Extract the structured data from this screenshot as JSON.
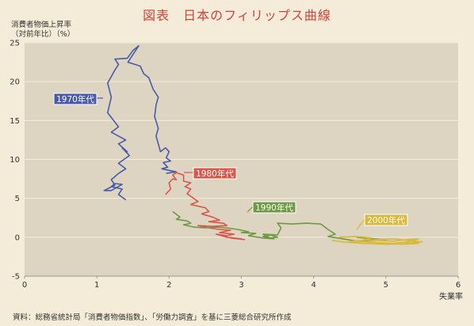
{
  "title": "図表　日本のフィリップス曲線",
  "source": "資料：総務省統計局「消費者物価指数」、「労働力調査」を基に三菱総合研究所作成",
  "chart_data": {
    "type": "line",
    "title": "図表　日本のフィリップス曲線",
    "ylabel_lines": [
      "消費者物価上昇率",
      "（対前年比）（%）"
    ],
    "xlabel": "失業率",
    "xlim": [
      0,
      6
    ],
    "ylim": [
      -5,
      25
    ],
    "xticks": [
      0,
      1,
      2,
      3,
      4,
      5,
      6
    ],
    "yticks": [
      -5,
      0,
      5,
      10,
      15,
      20,
      25
    ],
    "grid": "horizontal",
    "series": [
      {
        "name": "1970年代",
        "color": "#4a5aa8",
        "points": [
          [
            1.4,
            4.8
          ],
          [
            1.3,
            5.5
          ],
          [
            1.35,
            6.2
          ],
          [
            1.2,
            6.5
          ],
          [
            1.25,
            6.9
          ],
          [
            1.35,
            6.8
          ],
          [
            1.2,
            6.0
          ],
          [
            1.1,
            6.0
          ],
          [
            1.25,
            6.7
          ],
          [
            1.2,
            7.4
          ],
          [
            1.3,
            8.2
          ],
          [
            1.4,
            8.8
          ],
          [
            1.3,
            9.5
          ],
          [
            1.45,
            10.5
          ],
          [
            1.35,
            11.5
          ],
          [
            1.42,
            11.0
          ],
          [
            1.3,
            12.0
          ],
          [
            1.4,
            12.5
          ],
          [
            1.2,
            13.5
          ],
          [
            1.3,
            14.2
          ],
          [
            1.15,
            16.0
          ],
          [
            1.2,
            18.0
          ],
          [
            1.15,
            19.8
          ],
          [
            1.25,
            21.5
          ],
          [
            1.3,
            22.2
          ],
          [
            1.25,
            22.9
          ],
          [
            1.42,
            23.0
          ],
          [
            1.5,
            24.0
          ],
          [
            1.58,
            24.6
          ],
          [
            1.43,
            22.5
          ],
          [
            1.5,
            22.3
          ],
          [
            1.6,
            22.0
          ],
          [
            1.65,
            21.0
          ],
          [
            1.72,
            20.5
          ],
          [
            1.78,
            19.0
          ],
          [
            1.85,
            18.0
          ],
          [
            1.82,
            17.0
          ],
          [
            1.8,
            15.5
          ],
          [
            1.85,
            14.0
          ],
          [
            1.82,
            13.0
          ],
          [
            1.85,
            12.0
          ],
          [
            1.88,
            11.0
          ],
          [
            1.95,
            11.5
          ],
          [
            2.0,
            11.0
          ],
          [
            1.96,
            10.2
          ],
          [
            2.02,
            9.8
          ],
          [
            1.92,
            9.6
          ],
          [
            1.98,
            9.0
          ],
          [
            1.9,
            8.8
          ],
          [
            2.0,
            8.6
          ],
          [
            2.1,
            8.4
          ],
          [
            2.02,
            8.3
          ],
          [
            1.96,
            8.2
          ]
        ]
      },
      {
        "name": "1980年代",
        "color": "#d9574a",
        "points": [
          [
            1.95,
            5.5
          ],
          [
            2.02,
            6.2
          ],
          [
            2.0,
            7.0
          ],
          [
            2.05,
            7.5
          ],
          [
            2.1,
            7.4
          ],
          [
            2.05,
            8.0
          ],
          [
            2.1,
            8.3
          ],
          [
            2.2,
            8.0
          ],
          [
            2.2,
            7.2
          ],
          [
            2.3,
            7.0
          ],
          [
            2.22,
            6.5
          ],
          [
            2.3,
            6.2
          ],
          [
            2.25,
            5.6
          ],
          [
            2.4,
            4.6
          ],
          [
            2.3,
            4.2
          ],
          [
            2.5,
            3.8
          ],
          [
            2.55,
            3.3
          ],
          [
            2.45,
            3.0
          ],
          [
            2.6,
            2.6
          ],
          [
            2.7,
            2.2
          ],
          [
            2.55,
            2.0
          ],
          [
            2.75,
            1.8
          ],
          [
            2.8,
            1.5
          ],
          [
            2.6,
            1.4
          ],
          [
            2.4,
            1.5
          ],
          [
            2.55,
            1.2
          ],
          [
            2.7,
            1.0
          ],
          [
            2.85,
            0.9
          ],
          [
            2.7,
            0.6
          ],
          [
            2.9,
            0.4
          ],
          [
            2.8,
            0.2
          ],
          [
            2.65,
            0.4
          ],
          [
            2.8,
            0.0
          ],
          [
            3.0,
            -0.2
          ],
          [
            2.85,
            -0.1
          ],
          [
            3.05,
            -0.3
          ]
        ]
      },
      {
        "name": "1990年代",
        "color": "#6e9a44",
        "points": [
          [
            2.05,
            3.3
          ],
          [
            2.15,
            2.6
          ],
          [
            2.1,
            2.3
          ],
          [
            2.25,
            2.1
          ],
          [
            2.3,
            1.8
          ],
          [
            2.2,
            1.6
          ],
          [
            2.35,
            1.3
          ],
          [
            2.5,
            1.2
          ],
          [
            2.65,
            1.3
          ],
          [
            2.8,
            1.2
          ],
          [
            2.95,
            1.0
          ],
          [
            3.1,
            0.7
          ],
          [
            3.0,
            0.6
          ],
          [
            3.2,
            0.5
          ],
          [
            3.1,
            0.2
          ],
          [
            3.3,
            -0.1
          ],
          [
            3.45,
            -0.2
          ],
          [
            3.3,
            0.1
          ],
          [
            3.4,
            0.3
          ],
          [
            3.5,
            0.0
          ],
          [
            3.4,
            -0.1
          ],
          [
            3.3,
            0.4
          ],
          [
            3.5,
            0.3
          ],
          [
            3.55,
            1.2
          ],
          [
            3.5,
            1.8
          ],
          [
            3.7,
            1.7
          ],
          [
            3.9,
            1.8
          ],
          [
            4.1,
            1.7
          ],
          [
            4.2,
            1.0
          ],
          [
            4.3,
            0.4
          ],
          [
            4.2,
            0.1
          ],
          [
            4.4,
            -0.2
          ],
          [
            4.6,
            -0.5
          ],
          [
            4.8,
            -0.4
          ],
          [
            5.0,
            -0.3
          ],
          [
            4.8,
            -0.2
          ],
          [
            4.6,
            0.0
          ]
        ]
      },
      {
        "name": "2000年代",
        "color": "#d9b83a",
        "points": [
          [
            4.35,
            0.0
          ],
          [
            4.6,
            0.1
          ],
          [
            4.8,
            -0.1
          ],
          [
            4.7,
            -0.3
          ],
          [
            4.9,
            -0.4
          ],
          [
            5.1,
            -0.5
          ],
          [
            5.3,
            -0.3
          ],
          [
            5.45,
            -0.2
          ],
          [
            5.3,
            -0.6
          ],
          [
            5.1,
            -0.8
          ],
          [
            4.9,
            -0.7
          ],
          [
            4.7,
            -0.6
          ],
          [
            4.5,
            -0.5
          ],
          [
            4.7,
            -0.4
          ],
          [
            4.9,
            -0.3
          ],
          [
            5.1,
            -0.2
          ],
          [
            5.3,
            -0.4
          ],
          [
            5.5,
            -0.6
          ],
          [
            5.35,
            -0.7
          ],
          [
            5.2,
            -0.9
          ],
          [
            5.45,
            -0.8
          ],
          [
            5.0,
            -0.9
          ],
          [
            4.7,
            -0.8
          ],
          [
            4.4,
            -0.6
          ],
          [
            4.25,
            -0.4
          ]
        ]
      }
    ]
  }
}
